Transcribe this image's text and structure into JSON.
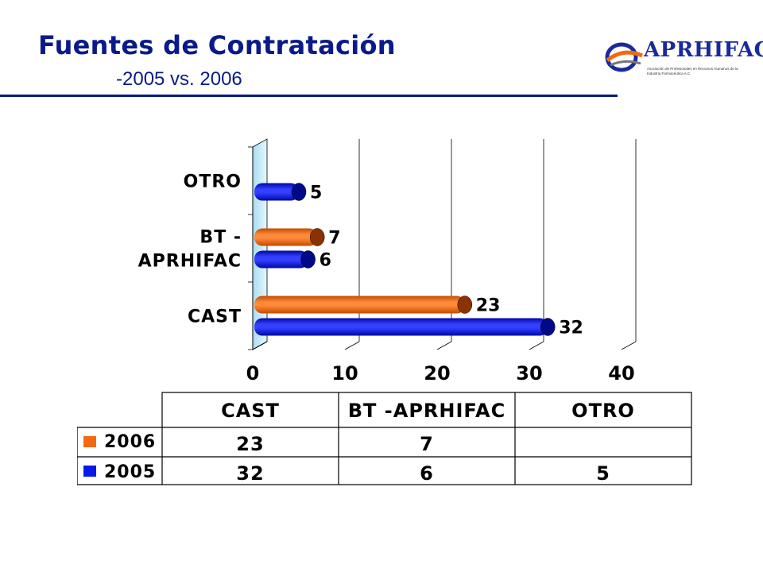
{
  "header": {
    "title": "Fuentes de Contratación",
    "subtitle": "-2005 vs. 2006"
  },
  "logo": {
    "name": "APRHIFAC",
    "tagline": "Asociación de Profesionales en Recursos Humanos de la Industria Farmacéutica A.C."
  },
  "colors": {
    "series_2006": "#f26a0f",
    "series_2005": "#0a18e8",
    "title": "#0a1a8a"
  },
  "chart_data": {
    "type": "bar",
    "orientation": "horizontal",
    "categories": [
      "CAST",
      "BT -APRHIFAC",
      "OTRO"
    ],
    "axis_category_labels": [
      [
        "CAST"
      ],
      [
        "BT -",
        "APRHIFAC"
      ],
      [
        "OTRO"
      ]
    ],
    "series": [
      {
        "name": "2006",
        "values": [
          23,
          7,
          null
        ]
      },
      {
        "name": "2005",
        "values": [
          32,
          6,
          5
        ]
      }
    ],
    "xlim": [
      0,
      40
    ],
    "xticks": [
      "0",
      "10",
      "20",
      "30",
      "40"
    ],
    "grid": true,
    "title": "",
    "xlabel": "",
    "ylabel": ""
  },
  "table": {
    "headers": [
      "CAST",
      "BT -APRHIFAC",
      "OTRO"
    ],
    "rows": [
      {
        "label": "2006",
        "values": [
          "23",
          "7",
          ""
        ]
      },
      {
        "label": "2005",
        "values": [
          "32",
          "6",
          "5"
        ]
      }
    ]
  }
}
